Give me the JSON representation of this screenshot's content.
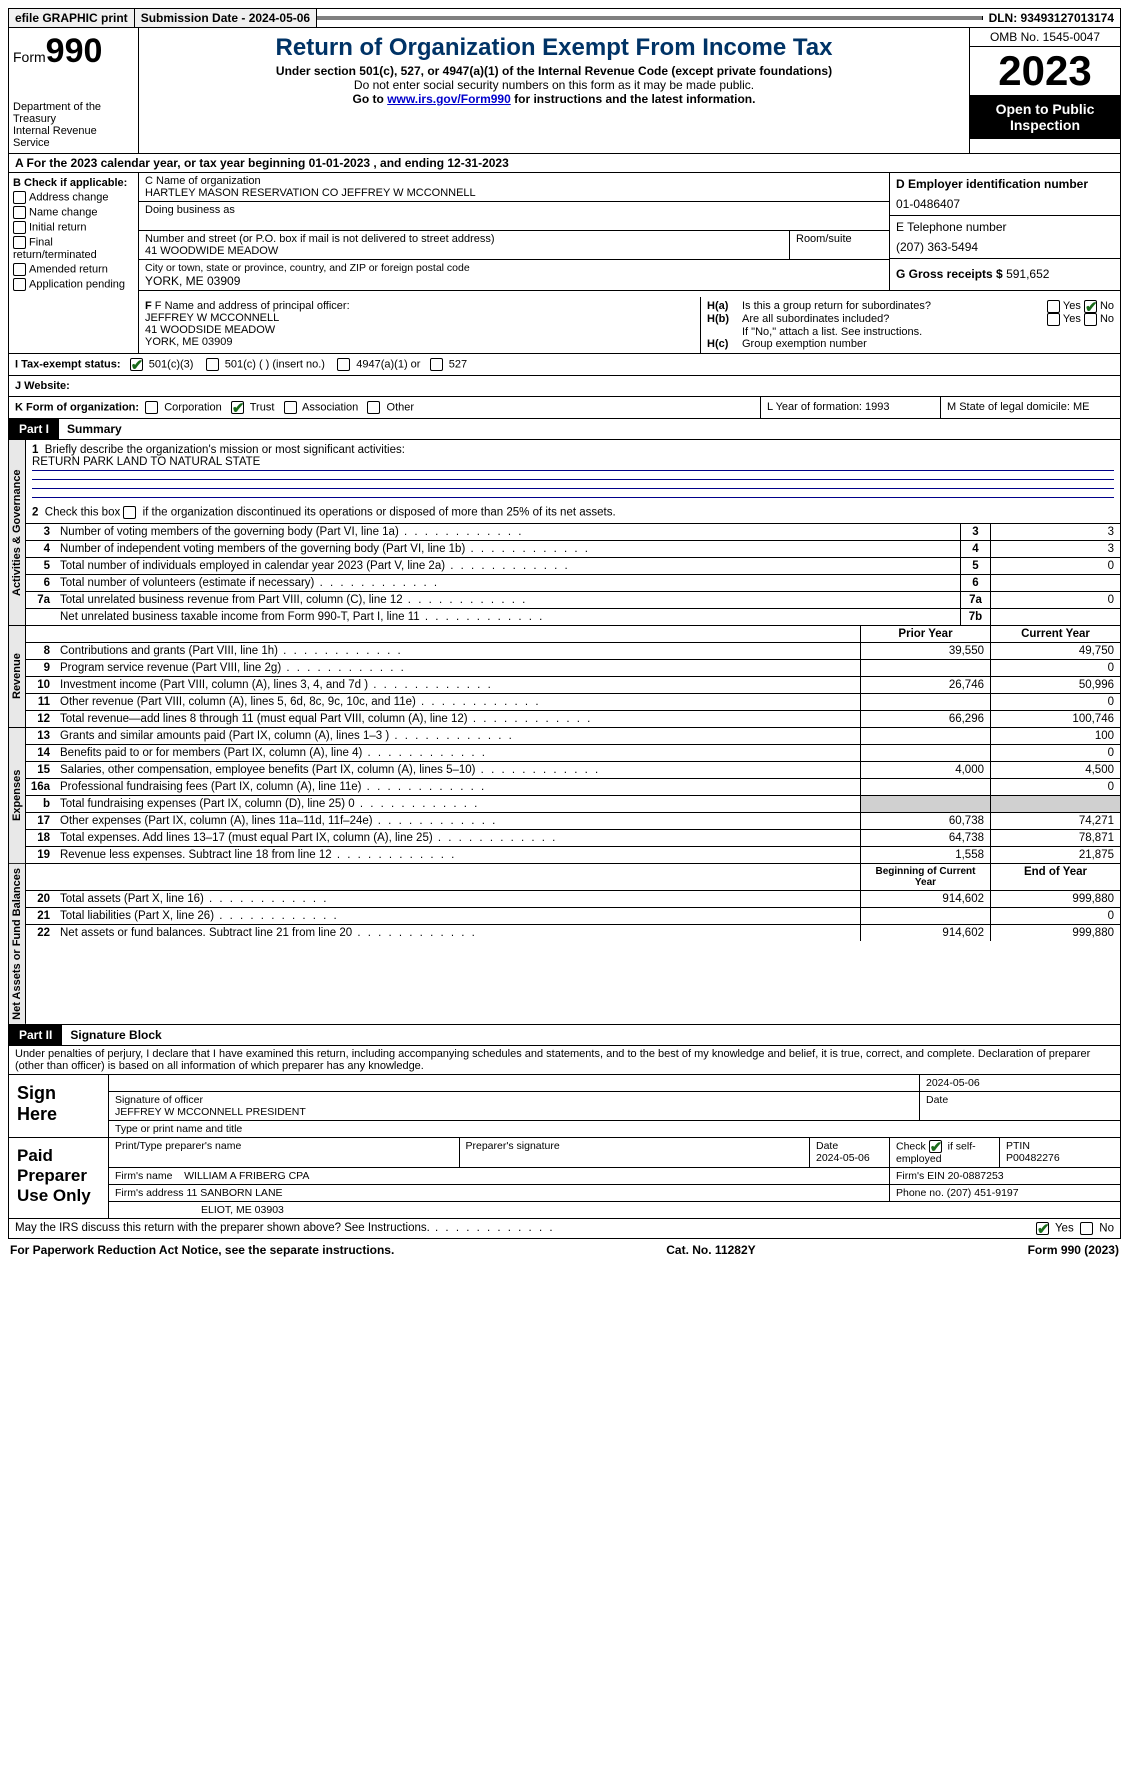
{
  "topbar": {
    "efile": "efile GRAPHIC print",
    "submission_label": "Submission Date - 2024-05-06",
    "dln": "DLN: 93493127013174"
  },
  "header": {
    "form_word": "Form",
    "form_num": "990",
    "dept": "Department of the Treasury",
    "irs": "Internal Revenue Service",
    "title": "Return of Organization Exempt From Income Tax",
    "subtitle": "Under section 501(c), 527, or 4947(a)(1) of the Internal Revenue Code (except private foundations)",
    "note1": "Do not enter social security numbers on this form as it may be made public.",
    "note2_pre": "Go to ",
    "note2_link": "www.irs.gov/Form990",
    "note2_post": " for instructions and the latest information.",
    "omb": "OMB No. 1545-0047",
    "year": "2023",
    "open": "Open to Public Inspection"
  },
  "rowA": "A  For the 2023 calendar year, or tax year beginning 01-01-2023    , and ending 12-31-2023",
  "boxB": {
    "label": "B Check if applicable:",
    "items": [
      "Address change",
      "Name change",
      "Initial return",
      "Final return/terminated",
      "Amended return",
      "Application pending"
    ]
  },
  "boxC": {
    "name_label": "C Name of organization",
    "name": "HARTLEY MASON RESERVATION CO JEFFREY W MCCONNELL",
    "dba_label": "Doing business as",
    "street_label": "Number and street (or P.O. box if mail is not delivered to street address)",
    "room_label": "Room/suite",
    "street": "41 WOODWIDE MEADOW",
    "city_label": "City or town, state or province, country, and ZIP or foreign postal code",
    "city": "YORK, ME  03909"
  },
  "boxD": {
    "label": "D Employer identification number",
    "value": "01-0486407"
  },
  "boxE": {
    "label": "E Telephone number",
    "value": "(207) 363-5494"
  },
  "boxG": {
    "label": "G Gross receipts $",
    "value": "591,652"
  },
  "boxF": {
    "label": "F  Name and address of principal officer:",
    "lines": [
      "JEFFREY W MCCONNELL",
      "41 WOODSIDE MEADOW",
      "YORK, ME 03909"
    ]
  },
  "boxH": {
    "a": "Is this a group return for subordinates?",
    "b": "Are all subordinates included?",
    "b_note": "If \"No,\" attach a list. See instructions.",
    "c": "Group exemption number",
    "yes": "Yes",
    "no": "No"
  },
  "rowI": {
    "label": "I   Tax-exempt status:",
    "opt1": "501(c)(3)",
    "opt2": "501(c) (  ) (insert no.)",
    "opt3": "4947(a)(1) or",
    "opt4": "527"
  },
  "rowJ": {
    "label": "J   Website:",
    "value": ""
  },
  "rowK": {
    "label": "K Form of organization:",
    "opts": [
      "Corporation",
      "Trust",
      "Association",
      "Other"
    ],
    "L": "L Year of formation: 1993",
    "M": "M State of legal domicile: ME"
  },
  "partI": {
    "num": "Part I",
    "title": "Summary"
  },
  "summary": {
    "q1": "Briefly describe the organization's mission or most significant activities:",
    "q1_ans": "RETURN PARK LAND TO NATURAL STATE",
    "q2": "Check this box         if the organization discontinued its operations or disposed of more than 25% of its net assets.",
    "rows_ag": [
      {
        "n": "3",
        "d": "Number of voting members of the governing body (Part VI, line 1a)",
        "b": "3",
        "v": "3"
      },
      {
        "n": "4",
        "d": "Number of independent voting members of the governing body (Part VI, line 1b)",
        "b": "4",
        "v": "3"
      },
      {
        "n": "5",
        "d": "Total number of individuals employed in calendar year 2023 (Part V, line 2a)",
        "b": "5",
        "v": "0"
      },
      {
        "n": "6",
        "d": "Total number of volunteers (estimate if necessary)",
        "b": "6",
        "v": ""
      },
      {
        "n": "7a",
        "d": "Total unrelated business revenue from Part VIII, column (C), line 12",
        "b": "7a",
        "v": "0"
      },
      {
        "n": "",
        "d": "Net unrelated business taxable income from Form 990-T, Part I, line 11",
        "b": "7b",
        "v": ""
      }
    ],
    "col_prior": "Prior Year",
    "col_current": "Current Year",
    "rows_rev": [
      {
        "n": "8",
        "d": "Contributions and grants (Part VIII, line 1h)",
        "p": "39,550",
        "c": "49,750"
      },
      {
        "n": "9",
        "d": "Program service revenue (Part VIII, line 2g)",
        "p": "",
        "c": "0"
      },
      {
        "n": "10",
        "d": "Investment income (Part VIII, column (A), lines 3, 4, and 7d )",
        "p": "26,746",
        "c": "50,996"
      },
      {
        "n": "11",
        "d": "Other revenue (Part VIII, column (A), lines 5, 6d, 8c, 9c, 10c, and 11e)",
        "p": "",
        "c": "0"
      },
      {
        "n": "12",
        "d": "Total revenue—add lines 8 through 11 (must equal Part VIII, column (A), line 12)",
        "p": "66,296",
        "c": "100,746"
      }
    ],
    "rows_exp": [
      {
        "n": "13",
        "d": "Grants and similar amounts paid (Part IX, column (A), lines 1–3 )",
        "p": "",
        "c": "100"
      },
      {
        "n": "14",
        "d": "Benefits paid to or for members (Part IX, column (A), line 4)",
        "p": "",
        "c": "0"
      },
      {
        "n": "15",
        "d": "Salaries, other compensation, employee benefits (Part IX, column (A), lines 5–10)",
        "p": "4,000",
        "c": "4,500"
      },
      {
        "n": "16a",
        "d": "Professional fundraising fees (Part IX, column (A), line 11e)",
        "p": "",
        "c": "0"
      },
      {
        "n": "b",
        "d": "Total fundraising expenses (Part IX, column (D), line 25) 0",
        "p": "shade",
        "c": "shade"
      },
      {
        "n": "17",
        "d": "Other expenses (Part IX, column (A), lines 11a–11d, 11f–24e)",
        "p": "60,738",
        "c": "74,271"
      },
      {
        "n": "18",
        "d": "Total expenses. Add lines 13–17 (must equal Part IX, column (A), line 25)",
        "p": "64,738",
        "c": "78,871"
      },
      {
        "n": "19",
        "d": "Revenue less expenses. Subtract line 18 from line 12",
        "p": "1,558",
        "c": "21,875"
      }
    ],
    "col_begin": "Beginning of Current Year",
    "col_end": "End of Year",
    "rows_na": [
      {
        "n": "20",
        "d": "Total assets (Part X, line 16)",
        "p": "914,602",
        "c": "999,880"
      },
      {
        "n": "21",
        "d": "Total liabilities (Part X, line 26)",
        "p": "",
        "c": "0"
      },
      {
        "n": "22",
        "d": "Net assets or fund balances. Subtract line 21 from line 20",
        "p": "914,602",
        "c": "999,880"
      }
    ]
  },
  "vtabs": {
    "ag": "Activities & Governance",
    "rev": "Revenue",
    "exp": "Expenses",
    "na": "Net Assets or Fund Balances"
  },
  "partII": {
    "num": "Part II",
    "title": "Signature Block"
  },
  "perjury": "Under penalties of perjury, I declare that I have examined this return, including accompanying schedules and statements, and to the best of my knowledge and belief, it is true, correct, and complete. Declaration of preparer (other than officer) is based on all information of which preparer has any knowledge.",
  "sign": {
    "here": "Sign Here",
    "date": "2024-05-06",
    "sig_label": "Signature of officer",
    "officer": "JEFFREY W MCCONNELL  PRESIDENT",
    "type_label": "Type or print name and title",
    "date_label": "Date"
  },
  "paid": {
    "label": "Paid Preparer Use Only",
    "h_name": "Print/Type preparer's name",
    "h_sig": "Preparer's signature",
    "h_date": "Date",
    "date": "2024-05-06",
    "check_label": "Check          if self-employed",
    "ptin_label": "PTIN",
    "ptin": "P00482276",
    "firm_name_label": "Firm's name  ",
    "firm_name": "WILLIAM A FRIBERG CPA",
    "firm_ein_label": "Firm's EIN  ",
    "firm_ein": "20-0887253",
    "firm_addr_label": "Firm's address ",
    "firm_addr1": "11 SANBORN LANE",
    "firm_addr2": "ELIOT, ME  03903",
    "phone_label": "Phone no. ",
    "phone": "(207) 451-9197"
  },
  "discuss": "May the IRS discuss this return with the preparer shown above? See Instructions.",
  "footer": {
    "left": "For Paperwork Reduction Act Notice, see the separate instructions.",
    "mid": "Cat. No. 11282Y",
    "right": "Form 990 (2023)"
  }
}
